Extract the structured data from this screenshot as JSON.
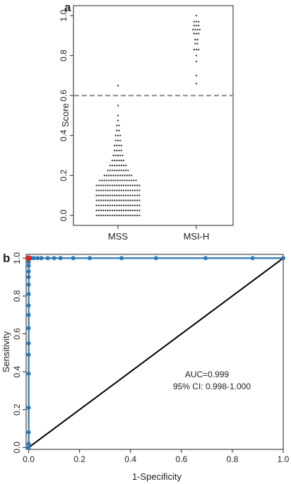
{
  "chart_data": [
    {
      "panel_label": "a",
      "type": "scatter",
      "subtype": "dot-strip",
      "title": "",
      "xlabel": "",
      "ylabel": "Score",
      "ylim": [
        -0.05,
        1.05
      ],
      "yticks": [
        0.0,
        0.2,
        0.4,
        0.6,
        0.8,
        1.0
      ],
      "ytick_labels": [
        "0.0",
        "0.2",
        "0.4",
        "0.6",
        "0.8",
        "1.0"
      ],
      "categories": [
        "MSS",
        "MSI-H"
      ],
      "threshold": 0.6,
      "threshold_style": "dashed",
      "grid": false,
      "marker_color": "#333333",
      "threshold_color": "#8a8a8a",
      "bins": [
        {
          "category": "MSS",
          "levels": [
            {
              "score": 0.0,
              "count": 20
            },
            {
              "score": 0.025,
              "count": 20
            },
            {
              "score": 0.05,
              "count": 20
            },
            {
              "score": 0.075,
              "count": 20
            },
            {
              "score": 0.1,
              "count": 20
            },
            {
              "score": 0.125,
              "count": 20
            },
            {
              "score": 0.15,
              "count": 20
            },
            {
              "score": 0.175,
              "count": 17
            },
            {
              "score": 0.2,
              "count": 13
            },
            {
              "score": 0.225,
              "count": 10
            },
            {
              "score": 0.25,
              "count": 8
            },
            {
              "score": 0.275,
              "count": 6
            },
            {
              "score": 0.3,
              "count": 5
            },
            {
              "score": 0.325,
              "count": 4
            },
            {
              "score": 0.35,
              "count": 4
            },
            {
              "score": 0.375,
              "count": 3
            },
            {
              "score": 0.4,
              "count": 3
            },
            {
              "score": 0.425,
              "count": 2
            },
            {
              "score": 0.45,
              "count": 2
            },
            {
              "score": 0.475,
              "count": 1
            },
            {
              "score": 0.5,
              "count": 1
            },
            {
              "score": 0.55,
              "count": 1
            },
            {
              "score": 0.65,
              "count": 1
            }
          ]
        },
        {
          "category": "MSI-H",
          "levels": [
            {
              "score": 0.66,
              "count": 1
            },
            {
              "score": 0.7,
              "count": 1
            },
            {
              "score": 0.77,
              "count": 1
            },
            {
              "score": 0.8,
              "count": 1
            },
            {
              "score": 0.83,
              "count": 3
            },
            {
              "score": 0.86,
              "count": 2
            },
            {
              "score": 0.88,
              "count": 2
            },
            {
              "score": 0.91,
              "count": 3
            },
            {
              "score": 0.93,
              "count": 4
            },
            {
              "score": 0.95,
              "count": 3
            },
            {
              "score": 0.97,
              "count": 3
            },
            {
              "score": 1.0,
              "count": 1
            }
          ]
        }
      ]
    },
    {
      "panel_label": "b",
      "type": "line",
      "subtype": "roc-curve",
      "title": "",
      "xlabel": "1-Specificity",
      "ylabel": "Sensitivity",
      "xlim": [
        -0.01,
        1.0
      ],
      "ylim": [
        -0.01,
        1.02
      ],
      "xticks": [
        0.0,
        0.2,
        0.4,
        0.6,
        0.8,
        1.0
      ],
      "xtick_labels": [
        "0.0",
        "0.2",
        "0.4",
        "0.6",
        "0.8",
        "1.0"
      ],
      "yticks": [
        0.0,
        0.2,
        0.4,
        0.6,
        0.8,
        1.0
      ],
      "ytick_labels": [
        "0.0",
        "0.2",
        "0.4",
        "0.6",
        "0.8",
        "1.0"
      ],
      "grid": false,
      "roc_color": "#2e77b5",
      "reference_line_color": "#000000",
      "highlight_color": "#d62728",
      "roc_points": {
        "x": [
          0.0,
          0.0,
          0.0,
          0.0,
          0.0,
          0.0,
          0.0,
          0.0,
          0.0,
          0.0,
          0.0,
          0.0,
          0.0,
          0.0,
          0.0,
          0.0,
          0.005,
          0.01,
          0.02,
          0.035,
          0.05,
          0.075,
          0.1,
          0.125,
          0.175,
          0.24,
          0.365,
          0.5,
          0.695,
          0.88,
          1.0
        ],
        "y": [
          0.0,
          0.02,
          0.08,
          0.21,
          0.39,
          0.49,
          0.55,
          0.63,
          0.7,
          0.75,
          0.81,
          0.86,
          0.9,
          0.93,
          0.96,
          0.98,
          1.0,
          1.0,
          1.0,
          1.0,
          1.0,
          1.0,
          1.0,
          1.0,
          1.0,
          1.0,
          1.0,
          1.0,
          1.0,
          1.0,
          1.0
        ]
      },
      "reference_line": {
        "x": [
          0.0,
          1.0
        ],
        "y": [
          0.0,
          1.0
        ]
      },
      "highlight_point": {
        "x": 0.0,
        "y": 1.0
      },
      "annotations": [
        "AUC=0.999",
        "95% CI: 0.998-1.000"
      ],
      "auc": 0.999,
      "ci": [
        0.998,
        1.0
      ]
    }
  ]
}
